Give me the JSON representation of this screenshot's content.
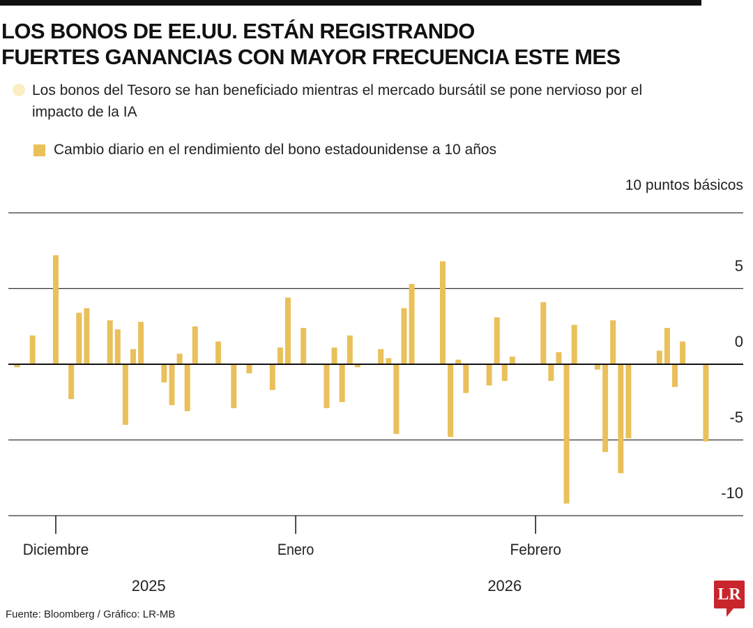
{
  "header": {
    "title_line1": "LOS BONOS DE EE.UU. ESTÁN REGISTRANDO",
    "title_line2": "FUERTES GANANCIAS CON MAYOR FRECUENCIA ESTE MES",
    "subtitle": "Los bonos del Tesoro se han beneficiado mientras el mercado bursátil se pone nervioso por el impacto de la IA"
  },
  "footer": {
    "source": "Fuente: Bloomberg / Gráfico: LR-MB",
    "logo_text": "LR",
    "logo_color": "#c8252c"
  },
  "chart_data": {
    "type": "bar",
    "legend": "Cambio diario en el rendimiento del bono estadounidense a 10 años",
    "unit_label": "10 puntos básicos",
    "bar_color": "#e9c05a",
    "ylim": [
      -10,
      10
    ],
    "yticks": [
      5,
      0,
      -5,
      -10
    ],
    "ytick_labels": [
      "5",
      "0",
      "-5",
      "-10"
    ],
    "grid": true,
    "xticks": [
      {
        "date": "2025-12-01",
        "label": "Diciembre"
      },
      {
        "date": "2026-01-01",
        "label": "Enero"
      },
      {
        "date": "2026-02-01",
        "label": "Febrero"
      }
    ],
    "year_labels": [
      {
        "date": "2025-12-13",
        "label": "2025"
      },
      {
        "date": "2026-01-28",
        "label": "2026"
      }
    ],
    "dates": [
      "2025-11-26",
      "2025-11-28",
      "2025-12-01",
      "2025-12-03",
      "2025-12-04",
      "2025-12-05",
      "2025-12-08",
      "2025-12-09",
      "2025-12-10",
      "2025-12-11",
      "2025-12-12",
      "2025-12-15",
      "2025-12-16",
      "2025-12-17",
      "2025-12-18",
      "2025-12-19",
      "2025-12-22",
      "2025-12-24",
      "2025-12-26",
      "2025-12-29",
      "2025-12-30",
      "2025-12-31",
      "2026-01-02",
      "2026-01-05",
      "2026-01-06",
      "2026-01-07",
      "2026-01-08",
      "2026-01-09",
      "2026-01-12",
      "2026-01-13",
      "2026-01-14",
      "2026-01-15",
      "2026-01-16",
      "2026-01-20",
      "2026-01-21",
      "2026-01-22",
      "2026-01-23",
      "2026-01-26",
      "2026-01-27",
      "2026-01-28",
      "2026-01-29",
      "2026-02-02",
      "2026-02-03",
      "2026-02-04",
      "2026-02-05",
      "2026-02-06",
      "2026-02-09",
      "2026-02-10",
      "2026-02-11",
      "2026-02-12",
      "2026-02-13",
      "2026-02-17",
      "2026-02-18",
      "2026-02-19",
      "2026-02-20",
      "2026-02-23"
    ],
    "values": [
      -0.2,
      1.9,
      7.2,
      -2.3,
      3.4,
      3.7,
      2.9,
      2.3,
      -4.0,
      1.0,
      2.8,
      -1.2,
      -2.7,
      0.7,
      -3.1,
      2.5,
      1.5,
      -2.9,
      -0.6,
      -1.7,
      1.1,
      4.4,
      2.4,
      -2.9,
      1.1,
      -2.5,
      1.9,
      -0.2,
      1.0,
      0.4,
      -4.6,
      3.7,
      5.3,
      6.8,
      -4.8,
      0.3,
      -1.9,
      -1.4,
      3.1,
      -1.1,
      0.5,
      4.1,
      -1.1,
      0.8,
      -9.2,
      2.6,
      -0.35,
      -5.8,
      2.9,
      -7.2,
      -4.9,
      0.9,
      2.4,
      -1.5,
      1.5,
      -5.1
    ]
  }
}
